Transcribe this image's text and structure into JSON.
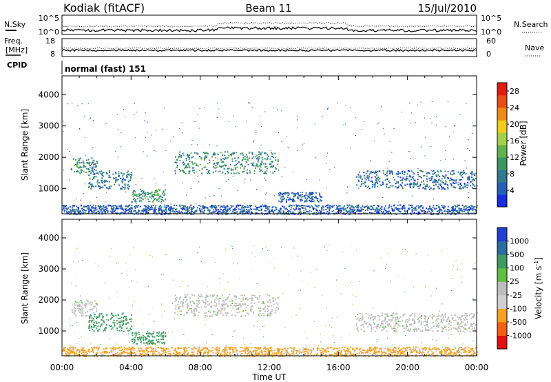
{
  "header": {
    "station": "Kodiak (fitACF)",
    "beam": "Beam 11",
    "date": "15/Jul/2010"
  },
  "top_panels": {
    "nsky_label": "N.Sky",
    "nsearch_label": "N.Search",
    "nsky_ticks": [
      "10^5",
      "10^0"
    ],
    "nsearch_ticks": [
      "10^5",
      "10^0"
    ],
    "freq_label": "Freq.",
    "freq_unit": "[MHz]",
    "freq_ticks": [
      "18",
      "8"
    ],
    "nave_label": "Nave",
    "nave_ticks": [
      "60",
      "0"
    ],
    "cpid_label": "CPID",
    "cpid_value": "normal (fast) 151"
  },
  "colors": {
    "power": [
      "#1a2ce0",
      "#2860b8",
      "#2f7a8e",
      "#3a9662",
      "#62b44a",
      "#a6d04a",
      "#f0cc20",
      "#ef8a17",
      "#e84e13",
      "#e01f10"
    ],
    "velocity": [
      "#e01010",
      "#f06010",
      "#f5a020",
      "#cfcfcf",
      "#bdbdbd",
      "#5fbf40",
      "#3d9a60",
      "#2a6da0",
      "#2040d0"
    ]
  },
  "chart_data": [
    {
      "type": "heatmap",
      "panel": "power",
      "ylabel": "Slant Range [km]",
      "ylim": [
        200,
        4600
      ],
      "y_ticks": [
        "1000",
        "2000",
        "3000",
        "4000"
      ],
      "xlim": [
        "00:00",
        "24:00"
      ],
      "colorbar_label": "Power [dB]",
      "colorbar_ticks": [
        "4",
        "8",
        "12",
        "16",
        "20",
        "24",
        "28"
      ],
      "colorbar_range": [
        0,
        30
      ],
      "echo_regions": [
        {
          "time": [
            "00:30",
            "02:00"
          ],
          "range_km": [
            1500,
            2000
          ],
          "level": 8
        },
        {
          "time": [
            "01:30",
            "04:00"
          ],
          "range_km": [
            1000,
            1600
          ],
          "level": 6
        },
        {
          "time": [
            "04:00",
            "06:00"
          ],
          "range_km": [
            600,
            1000
          ],
          "level": 10
        },
        {
          "time": [
            "06:30",
            "12:30"
          ],
          "range_km": [
            1500,
            2200
          ],
          "level": 9
        },
        {
          "time": [
            "12:30",
            "15:00"
          ],
          "range_km": [
            600,
            900
          ],
          "level": 4
        },
        {
          "time": [
            "17:00",
            "24:00"
          ],
          "range_km": [
            1000,
            1600
          ],
          "level": 5
        },
        {
          "time": [
            "00:00",
            "24:00"
          ],
          "range_km": [
            200,
            500
          ],
          "level": 4
        }
      ]
    },
    {
      "type": "heatmap",
      "panel": "velocity",
      "ylabel": "Slant Range [km]",
      "ylim": [
        200,
        4600
      ],
      "y_ticks": [
        "1000",
        "2000",
        "3000",
        "4000"
      ],
      "xlim": [
        "00:00",
        "24:00"
      ],
      "x_ticks": [
        "00:00",
        "04:00",
        "08:00",
        "12:00",
        "16:00",
        "20:00",
        "00:00"
      ],
      "xlabel": "Time UT",
      "colorbar_label": "Velocity [m s",
      "colorbar_label_sup": "-1",
      "colorbar_label_end": "]",
      "colorbar_ticks": [
        "1000",
        "500",
        "100",
        "25",
        "-25",
        "-100",
        "-500",
        "-1000"
      ],
      "echo_regions": [
        {
          "time": [
            "00:30",
            "02:00"
          ],
          "range_km": [
            1500,
            2000
          ],
          "velocity": 0
        },
        {
          "time": [
            "01:30",
            "04:00"
          ],
          "range_km": [
            1000,
            1600
          ],
          "velocity": 150
        },
        {
          "time": [
            "04:00",
            "06:00"
          ],
          "range_km": [
            600,
            1000
          ],
          "velocity": 200
        },
        {
          "time": [
            "06:30",
            "12:30"
          ],
          "range_km": [
            1500,
            2200
          ],
          "velocity": 0
        },
        {
          "time": [
            "17:00",
            "24:00"
          ],
          "range_km": [
            1000,
            1600
          ],
          "velocity": 0
        },
        {
          "time": [
            "00:00",
            "24:00"
          ],
          "range_km": [
            200,
            500
          ],
          "velocity": -120
        }
      ]
    }
  ]
}
